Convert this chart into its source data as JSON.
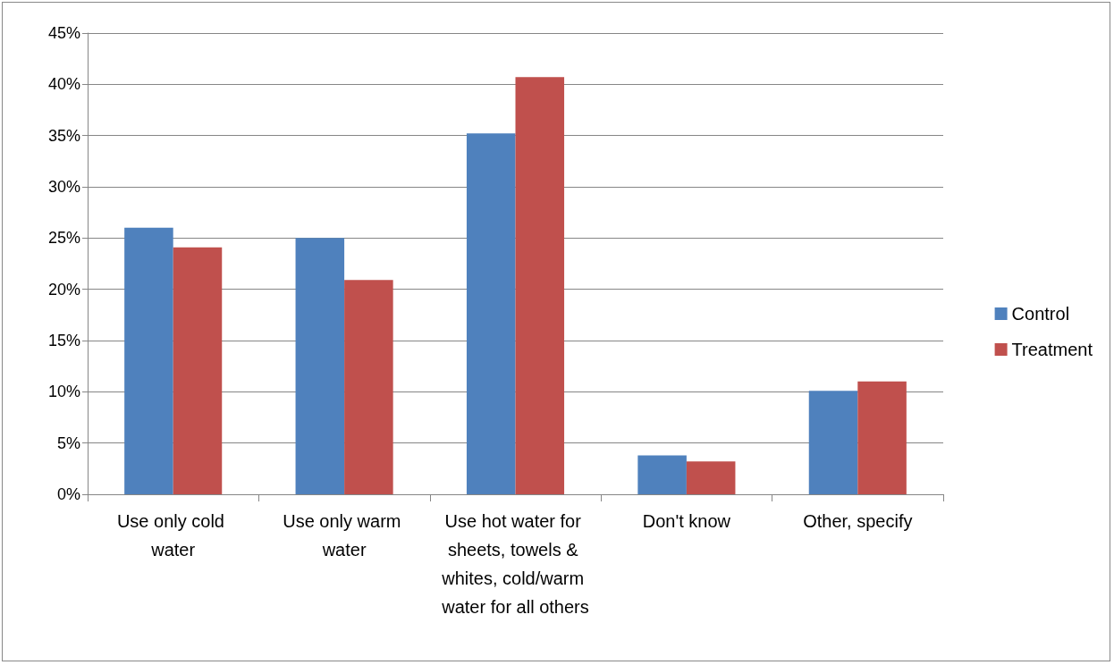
{
  "chart_data": {
    "type": "bar",
    "categories": [
      "Use only cold water",
      "Use only warm water",
      "Use hot water for sheets, towels & whites, cold/warm water for all others",
      "Don't know",
      "Other, specify"
    ],
    "series": [
      {
        "name": "Control",
        "color": "#4f81bd",
        "values": [
          26,
          25,
          35.2,
          3.8,
          10.1
        ]
      },
      {
        "name": "Treatment",
        "color": "#c0504d",
        "values": [
          24.1,
          20.9,
          40.7,
          3.2,
          11
        ]
      }
    ],
    "ylim": [
      0,
      45
    ],
    "yticks": [
      {
        "value": 0,
        "label": "0%"
      },
      {
        "value": 5,
        "label": "5%"
      },
      {
        "value": 10,
        "label": "10%"
      },
      {
        "value": 15,
        "label": "15%"
      },
      {
        "value": 20,
        "label": "20%"
      },
      {
        "value": 25,
        "label": "25%"
      },
      {
        "value": 30,
        "label": "30%"
      },
      {
        "value": 35,
        "label": "35%"
      },
      {
        "value": 40,
        "label": "40%"
      },
      {
        "value": 45,
        "label": "45%"
      }
    ],
    "grid": "y",
    "legend": "right"
  }
}
